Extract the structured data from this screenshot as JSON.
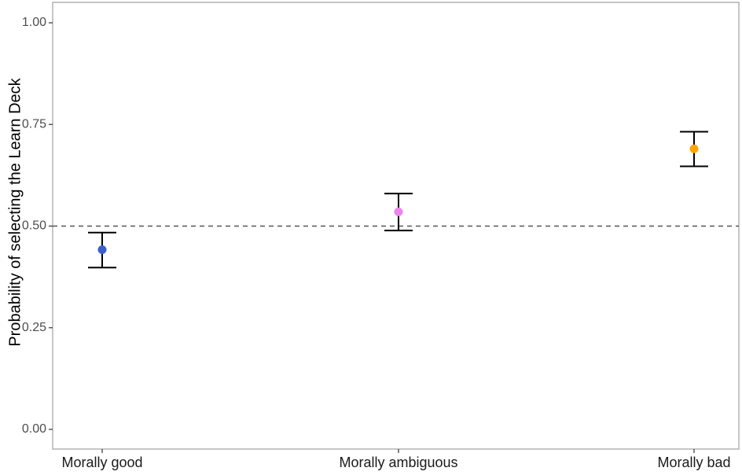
{
  "chart_data": {
    "type": "scatter",
    "title": "",
    "xlabel": "",
    "ylabel": "Probability of selecting the Learn Deck",
    "categories": [
      "Morally good",
      "Morally ambiguous",
      "Morally bad"
    ],
    "values": [
      0.442,
      0.535,
      0.69
    ],
    "error_lower": [
      0.398,
      0.489,
      0.647
    ],
    "error_upper": [
      0.484,
      0.58,
      0.732
    ],
    "point_colors": [
      "#3a5fcd",
      "#ee82ee",
      "#ffa500"
    ],
    "ylim": [
      0,
      1
    ],
    "yticks": [
      0,
      0.25,
      0.5,
      0.75,
      1.0
    ],
    "ytick_labels": [
      "0.00",
      "0.25",
      "0.50",
      "0.75",
      "1.00"
    ],
    "reference_line": {
      "y": 0.5,
      "style": "dashed",
      "color": "#555555"
    },
    "grid": false,
    "legend": "none"
  }
}
